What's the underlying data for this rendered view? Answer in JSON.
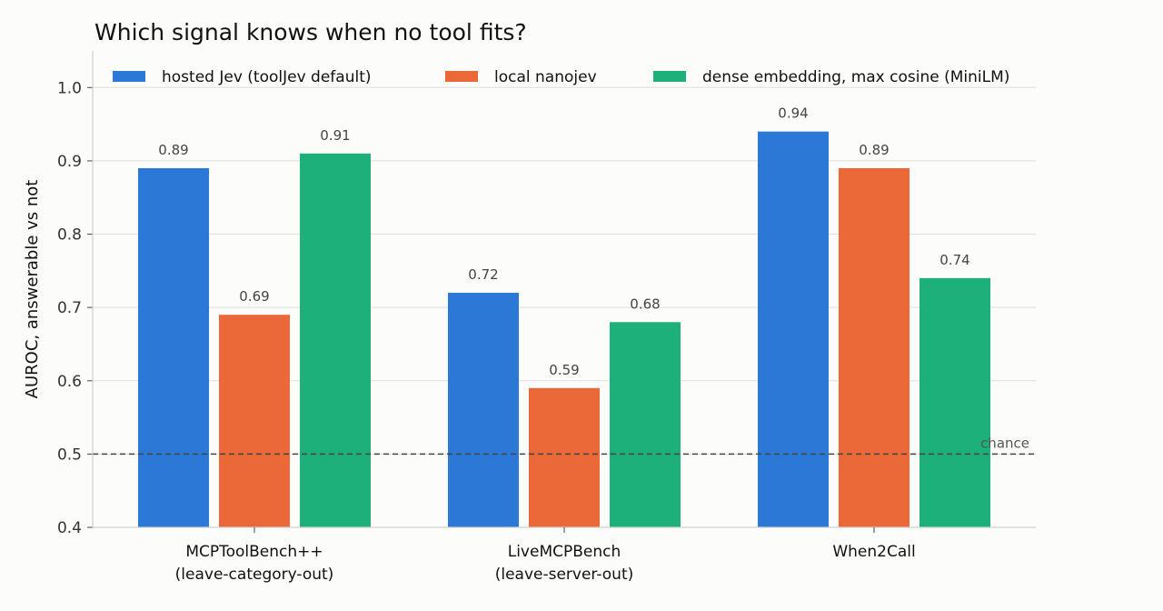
{
  "chart_data": {
    "type": "bar",
    "title": "Which signal knows when no tool fits?",
    "xlabel": "",
    "ylabel": "AUROC, answerable vs not",
    "ylim": [
      0.4,
      1.05
    ],
    "yticks": [
      "0.4",
      "0.5",
      "0.6",
      "0.7",
      "0.8",
      "0.9",
      "1.0"
    ],
    "grid": "horizontal",
    "legend_position": "top",
    "categories": [
      [
        "MCPToolBench++",
        "(leave-category-out)"
      ],
      [
        "LiveMCPBench",
        "(leave-server-out)"
      ],
      [
        "When2Call"
      ]
    ],
    "series": [
      {
        "name": "hosted Jev (toolJev default)",
        "color": "#2b78d6",
        "values": [
          0.89,
          0.72,
          0.94
        ],
        "labels": [
          "0.89",
          "0.72",
          "0.94"
        ]
      },
      {
        "name": "local nanojev",
        "color": "#eb6838",
        "values": [
          0.69,
          0.59,
          0.89
        ],
        "labels": [
          "0.69",
          "0.59",
          "0.89"
        ]
      },
      {
        "name": "dense embedding, max cosine (MiniLM)",
        "color": "#1db07a",
        "values": [
          0.91,
          0.68,
          0.74
        ],
        "labels": [
          "0.91",
          "0.68",
          "0.74"
        ]
      }
    ],
    "reference_line": {
      "value": 0.5,
      "label": "chance",
      "style": "dashed",
      "color": "#444444"
    }
  }
}
